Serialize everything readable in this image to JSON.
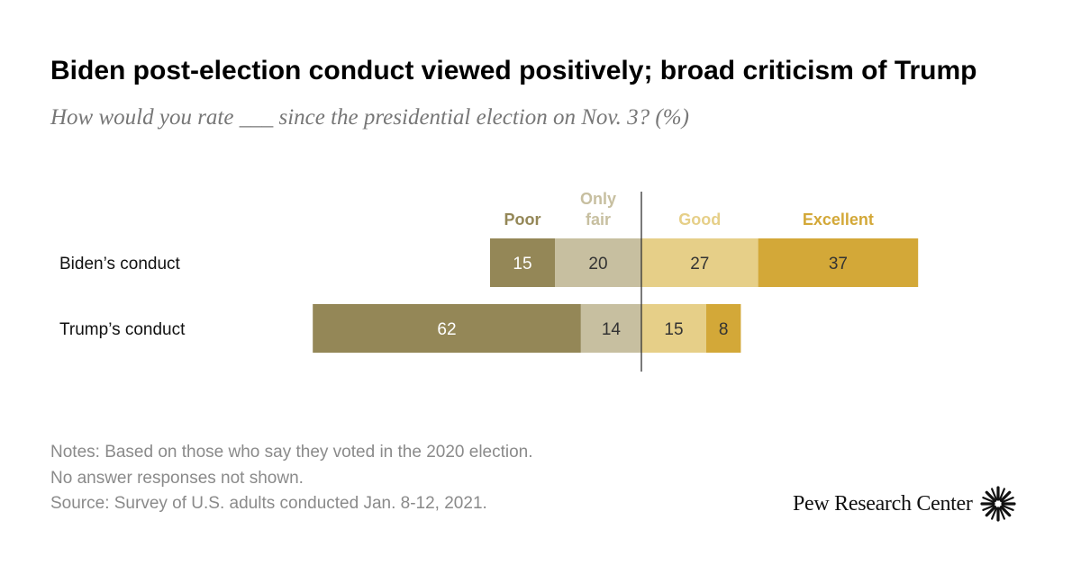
{
  "title": "Biden post-election conduct viewed positively; broad criticism of Trump",
  "subtitle": "How would you rate ___ since the presidential election on Nov. 3? (%)",
  "notes": [
    "Notes: Based on those who say they voted in the 2020 election.",
    "No answer responses not shown.",
    "Source: Survey of U.S. adults conducted Jan. 8-12, 2021."
  ],
  "logo": {
    "text": "Pew Research Center",
    "icon": "pew-sunburst-icon"
  },
  "chart_data": {
    "type": "bar",
    "orientation": "horizontal",
    "stacked": "diverging",
    "categories": [
      "Biden’s conduct",
      "Trump’s conduct"
    ],
    "series": [
      {
        "name": "Poor",
        "side": "negative",
        "color": "#948757",
        "label_color": "#948757",
        "value_color": "#ffffff",
        "values": [
          15,
          62
        ]
      },
      {
        "name": "Only fair",
        "side": "negative",
        "color": "#c7bfa0",
        "label_color": "#c7bfa0",
        "value_color": "#333333",
        "values": [
          20,
          14
        ]
      },
      {
        "name": "Good",
        "side": "positive",
        "color": "#e6cf88",
        "label_color": "#e6cf88",
        "value_color": "#333333",
        "values": [
          27,
          15
        ]
      },
      {
        "name": "Excellent",
        "side": "positive",
        "color": "#d3a838",
        "label_color": "#d3a838",
        "value_color": "#333333",
        "values": [
          37,
          8
        ]
      }
    ],
    "legend": "top",
    "grid": false,
    "xlabel": "",
    "ylabel": ""
  }
}
